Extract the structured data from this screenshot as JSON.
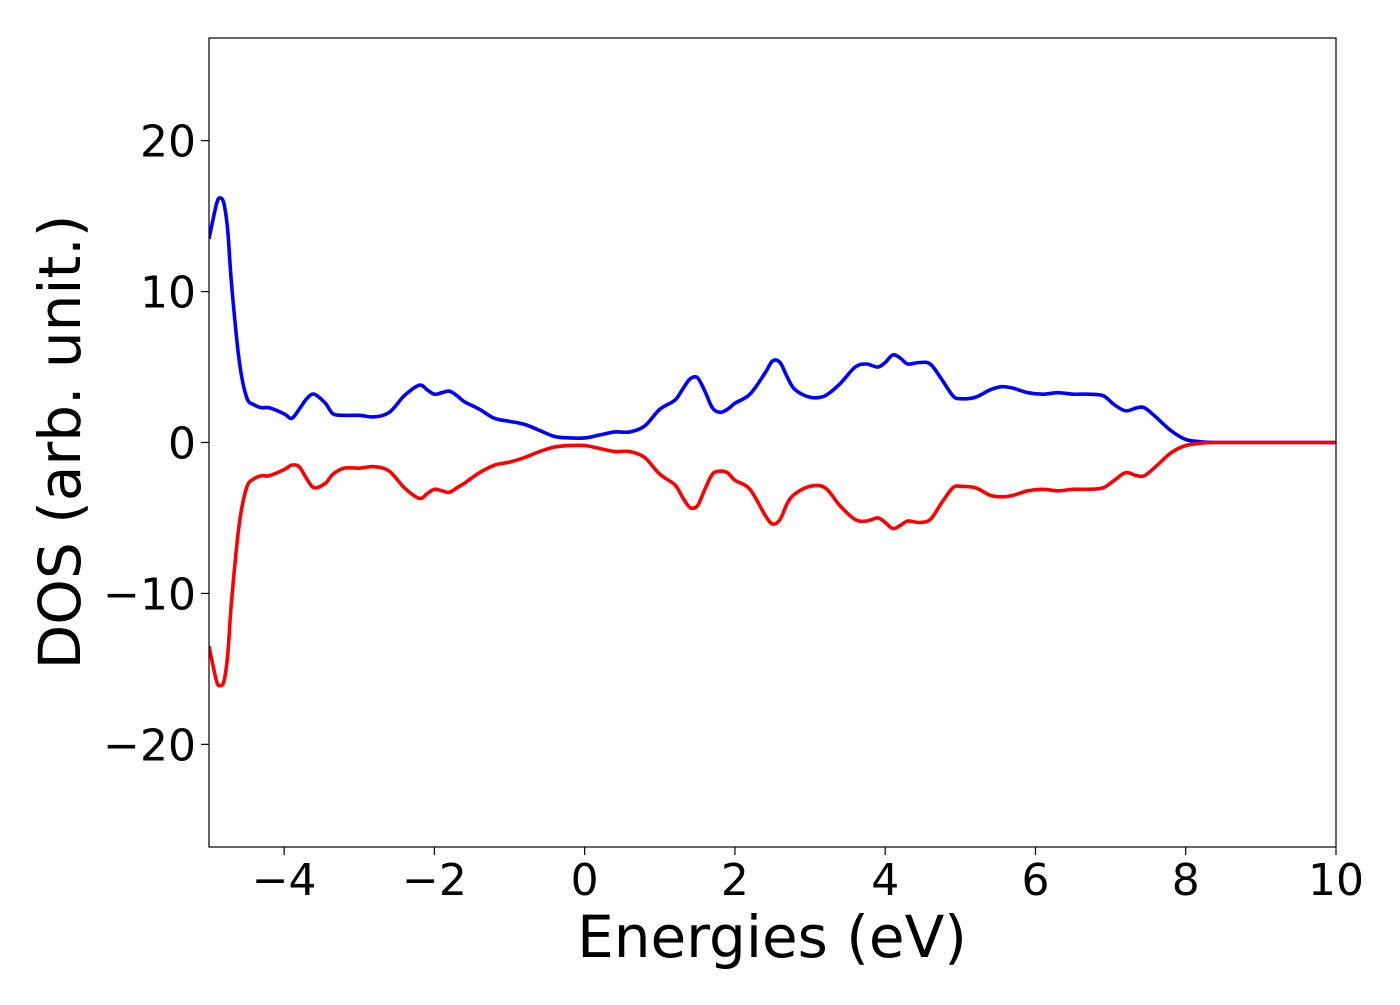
{
  "chart_data": {
    "type": "line",
    "title": "",
    "xlabel": "Energies (eV)",
    "ylabel": "DOS (arb. unit.)",
    "xlim": [
      -5,
      10
    ],
    "ylim": [
      -26.8,
      26.8
    ],
    "xticks": [
      -4,
      -2,
      0,
      2,
      4,
      6,
      8,
      10
    ],
    "xtick_labels": [
      "−4",
      "−2",
      "0",
      "2",
      "4",
      "6",
      "8",
      "10"
    ],
    "yticks": [
      -20,
      -10,
      0,
      10,
      20
    ],
    "ytick_labels": [
      "−20",
      "−10",
      "0",
      "10",
      "20"
    ],
    "grid": false,
    "series": [
      {
        "color": "#0000ff",
        "x": [
          -5.0,
          -4.9,
          -4.85,
          -4.8,
          -4.75,
          -4.7,
          -4.6,
          -4.5,
          -4.4,
          -4.3,
          -4.2,
          -4.0,
          -3.9,
          -3.8,
          -3.7,
          -3.6,
          -3.45,
          -3.35,
          -3.2,
          -3.0,
          -2.8,
          -2.6,
          -2.4,
          -2.2,
          -2.1,
          -2.0,
          -1.9,
          -1.8,
          -1.7,
          -1.6,
          -1.4,
          -1.2,
          -1.0,
          -0.8,
          -0.6,
          -0.4,
          -0.2,
          0.0,
          0.2,
          0.4,
          0.6,
          0.8,
          1.0,
          1.2,
          1.3,
          1.4,
          1.5,
          1.6,
          1.7,
          1.8,
          1.9,
          2.0,
          2.2,
          2.4,
          2.5,
          2.6,
          2.7,
          2.8,
          3.0,
          3.2,
          3.4,
          3.6,
          3.75,
          3.9,
          4.0,
          4.1,
          4.2,
          4.3,
          4.45,
          4.6,
          4.75,
          4.9,
          5.0,
          5.2,
          5.4,
          5.55,
          5.7,
          5.9,
          6.1,
          6.3,
          6.5,
          6.7,
          6.9,
          7.05,
          7.2,
          7.35,
          7.45,
          7.6,
          7.8,
          8.0,
          8.2,
          8.4,
          9.0,
          10.0
        ],
        "y": [
          13.5,
          15.8,
          16.2,
          15.8,
          14.0,
          10.5,
          5.5,
          3.0,
          2.5,
          2.3,
          2.3,
          1.9,
          1.6,
          2.2,
          2.9,
          3.2,
          2.6,
          1.9,
          1.8,
          1.8,
          1.7,
          2.0,
          3.1,
          3.8,
          3.5,
          3.2,
          3.3,
          3.4,
          3.1,
          2.7,
          2.2,
          1.6,
          1.4,
          1.2,
          0.8,
          0.4,
          0.3,
          0.3,
          0.5,
          0.7,
          0.7,
          1.1,
          2.2,
          2.8,
          3.5,
          4.2,
          4.3,
          3.4,
          2.3,
          2.0,
          2.2,
          2.6,
          3.2,
          4.6,
          5.4,
          5.3,
          4.3,
          3.5,
          3.0,
          3.1,
          3.9,
          5.0,
          5.2,
          5.0,
          5.3,
          5.8,
          5.6,
          5.2,
          5.3,
          5.2,
          4.2,
          3.1,
          2.9,
          3.0,
          3.5,
          3.7,
          3.6,
          3.3,
          3.2,
          3.3,
          3.2,
          3.2,
          3.1,
          2.5,
          2.1,
          2.3,
          2.3,
          1.7,
          0.8,
          0.2,
          0.05,
          0.0,
          0.0,
          0.0
        ]
      },
      {
        "color": "#ff0000",
        "x": [
          -5.0,
          -4.9,
          -4.85,
          -4.8,
          -4.75,
          -4.7,
          -4.6,
          -4.5,
          -4.4,
          -4.3,
          -4.2,
          -4.0,
          -3.9,
          -3.8,
          -3.7,
          -3.6,
          -3.45,
          -3.35,
          -3.2,
          -3.0,
          -2.8,
          -2.6,
          -2.4,
          -2.2,
          -2.1,
          -2.0,
          -1.9,
          -1.8,
          -1.7,
          -1.6,
          -1.4,
          -1.2,
          -1.0,
          -0.8,
          -0.6,
          -0.4,
          -0.2,
          0.0,
          0.2,
          0.4,
          0.6,
          0.8,
          1.0,
          1.2,
          1.3,
          1.4,
          1.5,
          1.6,
          1.7,
          1.8,
          1.9,
          2.0,
          2.2,
          2.4,
          2.5,
          2.6,
          2.7,
          2.8,
          3.0,
          3.2,
          3.4,
          3.6,
          3.75,
          3.9,
          4.0,
          4.1,
          4.2,
          4.3,
          4.45,
          4.6,
          4.75,
          4.9,
          5.0,
          5.2,
          5.4,
          5.55,
          5.7,
          5.9,
          6.1,
          6.3,
          6.5,
          6.7,
          6.9,
          7.05,
          7.2,
          7.35,
          7.45,
          7.6,
          7.8,
          8.0,
          8.2,
          8.4,
          9.0,
          10.0
        ],
        "y": [
          -13.5,
          -15.8,
          -16.1,
          -15.8,
          -14.0,
          -10.5,
          -5.5,
          -3.0,
          -2.4,
          -2.2,
          -2.2,
          -1.8,
          -1.5,
          -1.6,
          -2.4,
          -3.0,
          -2.7,
          -2.1,
          -1.7,
          -1.7,
          -1.6,
          -1.9,
          -3.0,
          -3.7,
          -3.4,
          -3.1,
          -3.2,
          -3.3,
          -3.0,
          -2.7,
          -2.0,
          -1.5,
          -1.3,
          -1.0,
          -0.6,
          -0.3,
          -0.2,
          -0.2,
          -0.4,
          -0.6,
          -0.6,
          -1.0,
          -2.1,
          -2.8,
          -3.6,
          -4.3,
          -4.2,
          -3.1,
          -2.1,
          -1.9,
          -2.0,
          -2.5,
          -3.1,
          -4.8,
          -5.4,
          -5.1,
          -4.0,
          -3.4,
          -2.9,
          -3.0,
          -4.2,
          -5.1,
          -5.2,
          -5.0,
          -5.3,
          -5.7,
          -5.5,
          -5.2,
          -5.3,
          -5.1,
          -4.0,
          -3.0,
          -2.9,
          -3.0,
          -3.5,
          -3.6,
          -3.5,
          -3.2,
          -3.1,
          -3.2,
          -3.1,
          -3.1,
          -3.0,
          -2.5,
          -2.0,
          -2.2,
          -2.2,
          -1.6,
          -0.7,
          -0.2,
          -0.05,
          0.0,
          0.0,
          0.0
        ]
      }
    ]
  }
}
